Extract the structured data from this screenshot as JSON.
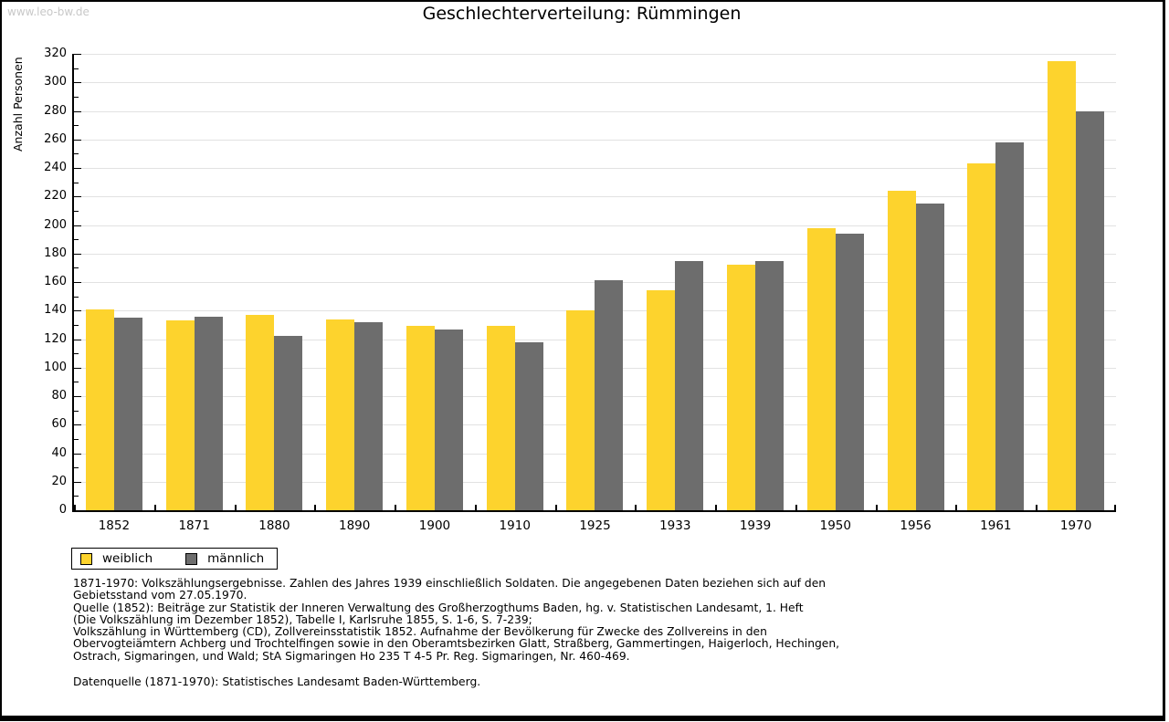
{
  "watermark": "www.leo-bw.de",
  "datasource": "Datenquelle (1871-1970): Statistisches Landesamt Baden-Württemberg.",
  "footnotes": [
    "1871-1970: Volkszählungsergebnisse. Zahlen des Jahres 1939 einschließlich Soldaten. Die angegebenen Daten beziehen sich auf den",
    "Gebietsstand vom 27.05.1970.",
    "Quelle (1852): Beiträge zur Statistik der Inneren Verwaltung des Großherzogthums Baden, hg. v. Statistischen Landesamt, 1. Heft",
    "(Die Volkszählung im Dezember 1852), Tabelle I, Karlsruhe 1855, S. 1-6, S. 7-239;",
    "Volkszählung in Württemberg (CD), Zollvereinsstatistik 1852. Aufnahme der Bevölkerung für Zwecke des Zollvereins in den",
    "Obervogteiämtern Achberg und Trochtelfingen sowie in den Oberamtsbezirken Glatt, Straßberg, Gammertingen, Haigerloch, Hechingen,",
    "Ostrach, Sigmaringen, und Wald; StA Sigmaringen Ho 235 T 4-5 Pr. Reg. Sigmaringen, Nr. 460-469."
  ],
  "chart_data": {
    "type": "bar",
    "title": "Geschlechterverteilung: Rümmingen",
    "xlabel": "",
    "ylabel": "Anzahl Personen",
    "ylim": [
      0,
      320
    ],
    "ytick_major": 20,
    "ytick_minor": 10,
    "grid": true,
    "legend_position": "bottom-left-below-plot",
    "categories": [
      "1852",
      "1871",
      "1880",
      "1890",
      "1900",
      "1910",
      "1925",
      "1933",
      "1939",
      "1950",
      "1956",
      "1961",
      "1970"
    ],
    "series": [
      {
        "name": "weiblich",
        "color": "#fdd32d",
        "values": [
          141,
          133,
          137,
          134,
          129,
          129,
          140,
          154,
          172,
          198,
          224,
          243,
          315
        ]
      },
      {
        "name": "männlich",
        "color": "#6d6d6d",
        "values": [
          135,
          136,
          122,
          132,
          127,
          118,
          161,
          175,
          175,
          194,
          215,
          258,
          280
        ]
      }
    ]
  },
  "colors": {
    "weiblich": "#fdd32d",
    "männlich": "#6d6d6d",
    "gridline": "#e2e2e2",
    "watermark": "#c8c8c8",
    "axis": "#000000"
  }
}
